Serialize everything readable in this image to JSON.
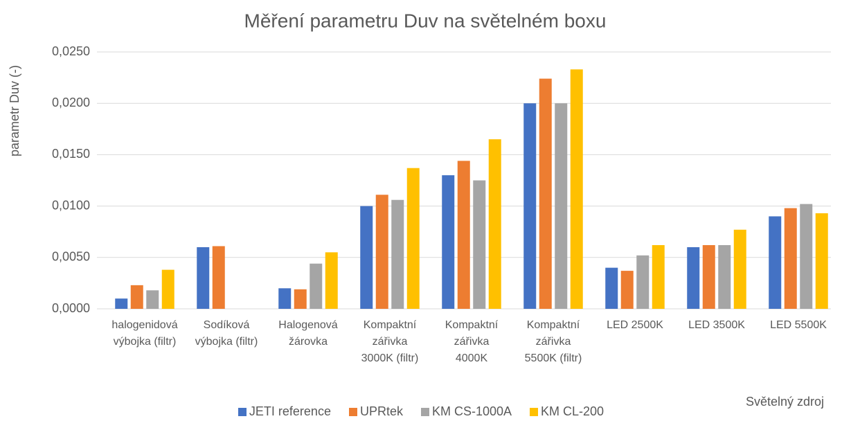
{
  "chart_data": {
    "type": "bar",
    "title": "Měření parametru Duv na světelném boxu",
    "y_label": "parametr Duv (-)",
    "x_label": "Světelný zdroj",
    "categories": [
      "halogenidová\nvýbojka (filtr)",
      "Sodíková\nvýbojka (filtr)",
      "Halogenová\nžárovka",
      "Kompaktní\nzářivka\n3000K (filtr)",
      "Kompaktní\nzářivka\n4000K",
      "Kompaktní\nzářivka\n5500K (filtr)",
      "LED 2500K",
      "LED 3500K",
      "LED 5500K"
    ],
    "series": [
      {
        "name": "JETI reference",
        "color": "#4472c4",
        "values": [
          0.001,
          0.006,
          0.002,
          0.01,
          0.013,
          0.02,
          0.004,
          0.006,
          0.009
        ]
      },
      {
        "name": "UPRtek",
        "color": "#ed7d31",
        "values": [
          0.0023,
          0.0061,
          0.0019,
          0.0111,
          0.0144,
          0.0224,
          0.0037,
          0.0062,
          0.0098
        ]
      },
      {
        "name": "KM CS-1000A",
        "color": "#a5a5a5",
        "values": [
          0.0018,
          null,
          0.0044,
          0.0106,
          0.0125,
          0.02,
          0.0052,
          0.0062,
          0.0102
        ]
      },
      {
        "name": "KM CL-200",
        "color": "#ffc000",
        "values": [
          0.0038,
          null,
          0.0055,
          0.0137,
          0.0165,
          0.0233,
          0.0062,
          0.0077,
          0.0093
        ]
      }
    ],
    "ylim": [
      0,
      0.025
    ],
    "yticks": [
      {
        "value": 0,
        "label": "0,0000"
      },
      {
        "value": 0.005,
        "label": "0,0050"
      },
      {
        "value": 0.01,
        "label": "0,0100"
      },
      {
        "value": 0.015,
        "label": "0,0150"
      },
      {
        "value": 0.02,
        "label": "0,0200"
      },
      {
        "value": 0.025,
        "label": "0,0250"
      }
    ],
    "grid": true,
    "legend": "bottom"
  }
}
